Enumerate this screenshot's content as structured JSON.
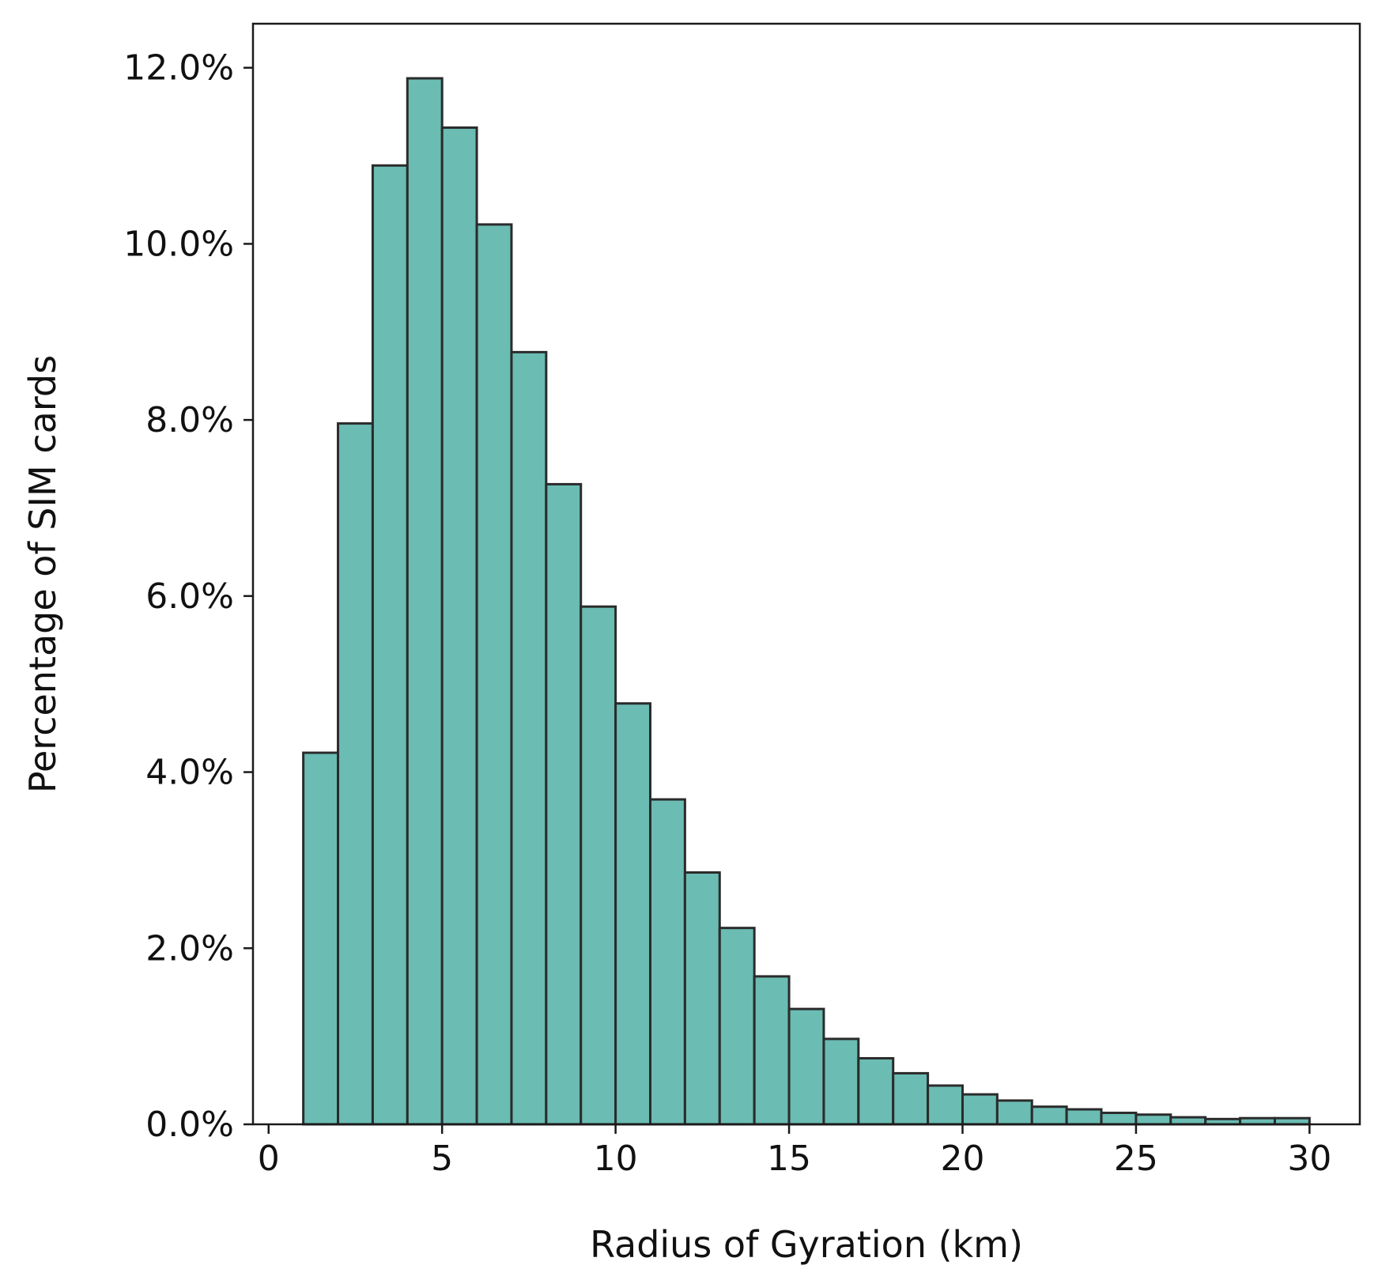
{
  "chart_data": {
    "type": "bar",
    "xlabel": "Radius of Gyration (km)",
    "ylabel": "Percentage of SIM cards",
    "xlim": [
      -0.45,
      31.45
    ],
    "ylim": [
      0,
      12.5
    ],
    "x_ticks": [
      0,
      5,
      10,
      15,
      20,
      25,
      30
    ],
    "x_tick_labels": [
      "0",
      "5",
      "10",
      "15",
      "20",
      "25",
      "30"
    ],
    "y_ticks": [
      0,
      2,
      4,
      6,
      8,
      10,
      12
    ],
    "y_tick_labels": [
      "0.0%",
      "2.0%",
      "4.0%",
      "6.0%",
      "8.0%",
      "10.0%",
      "12.0%"
    ],
    "bin_edges": [
      1,
      2,
      3,
      4,
      5,
      6,
      7,
      8,
      9,
      10,
      11,
      12,
      13,
      14,
      15,
      16,
      17,
      18,
      19,
      20,
      21,
      22,
      23,
      24,
      25,
      26,
      27,
      28,
      29,
      30
    ],
    "values": [
      4.22,
      7.96,
      10.89,
      11.88,
      11.32,
      10.22,
      8.77,
      7.27,
      5.88,
      4.78,
      3.69,
      2.86,
      2.23,
      1.68,
      1.31,
      0.97,
      0.75,
      0.58,
      0.44,
      0.34,
      0.27,
      0.2,
      0.17,
      0.13,
      0.11,
      0.08,
      0.06,
      0.07,
      0.07
    ],
    "grid": false,
    "bar_color": "#6bbcb3",
    "edge_color": "#2b2b2b"
  }
}
